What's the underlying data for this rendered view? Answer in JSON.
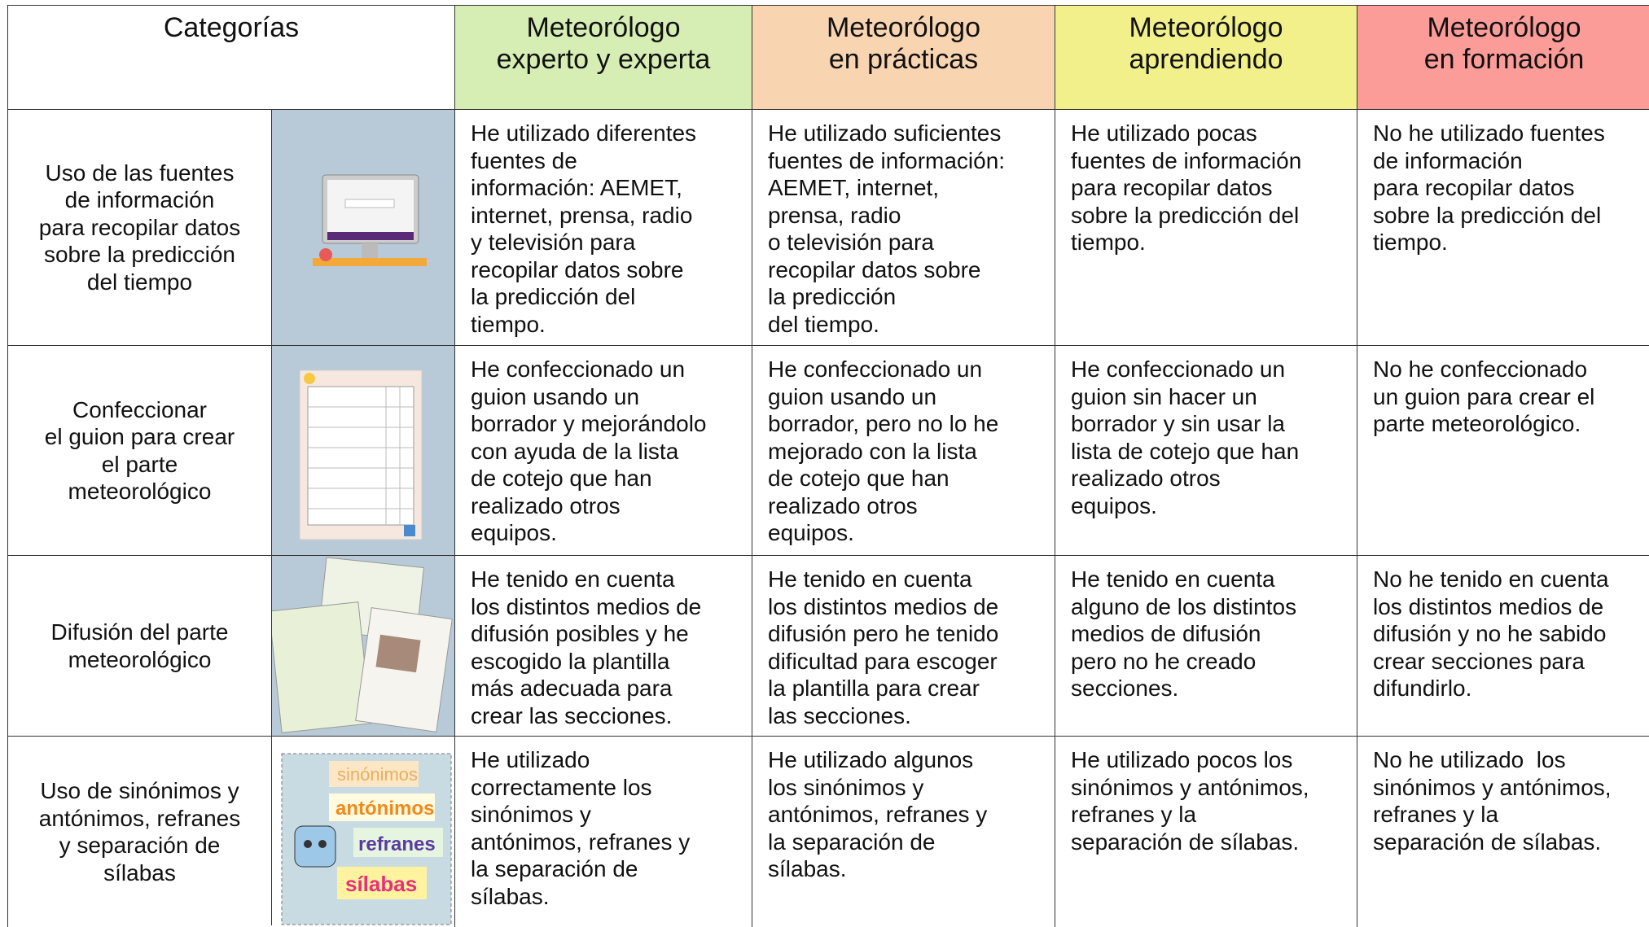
{
  "table": {
    "header": [
      "Categorías",
      "Meteorólogo\nexperto y experta",
      "Meteorólogo\nen prácticas",
      "Meteorólogo\naprendiendo",
      "Meteorólogo\nen formación"
    ],
    "rows": [
      {
        "category": "Uso de las fuentes\nde información\npara recopilar datos\nsobre la predicción\ndel tiempo",
        "cells": [
          "He utilizado diferentes\nfuentes de\ninformación: AEMET,\ninternet, prensa, radio\ny televisión para\nrecopilar datos sobre\nla predicción del\ntiempo.",
          "He utilizado suficientes\nfuentes de información:\nAEMET, internet,\nprensa, radio\no televisión para\nrecopilar datos sobre\nla predicción\ndel tiempo.",
          "He utilizado pocas\nfuentes de información\npara recopilar datos\nsobre la predicción del\ntiempo.",
          "No he utilizado fuentes\nde información\npara recopilar datos\nsobre la predicción del\ntiempo."
        ]
      },
      {
        "category": "Confeccionar\nel guion para crear\nel parte\nmeteorológico",
        "cells": [
          "He confeccionado un\nguion usando un\nborrador y mejorándolo\ncon ayuda de la lista\nde cotejo que han\nrealizado otros\nequipos.",
          "He confeccionado un\nguion usando un\nborrador, pero no lo he\nmejorado con la lista\nde cotejo que han\nrealizado otros\nequipos.",
          "He confeccionado un\nguion sin hacer un\nborrador y sin usar la\nlista de cotejo que han\nrealizado otros\nequipos.",
          "No he confeccionado\nun guion para crear el\nparte meteorológico."
        ]
      },
      {
        "category": "Difusión del parte\nmeteorológico",
        "cells": [
          "He tenido en cuenta\nlos distintos medios de\ndifusión posibles y he\nescogido la plantilla\nmás adecuada para\ncrear las secciones.",
          "He tenido en cuenta\nlos distintos medios de\ndifusión pero he tenido\ndificultad para escoger\nla plantilla para crear\nlas secciones.",
          "He tenido en cuenta\nalguno de los distintos\nmedios de difusión\npero no he creado\nsecciones.",
          "No he tenido en cuenta\nlos distintos medios de\ndifusión y no he sabido\ncrear secciones para\ndifundirlo."
        ]
      },
      {
        "category": "Uso de sinónimos y\nantónimos, refranes\ny separación de\nsílabas",
        "image_labels": [
          "sinónimos",
          "antónimos",
          "refranes",
          "sílabas"
        ],
        "cells": [
          "He utilizado\ncorrectamente los\nsinónimos y\nantónimos, refranes y\nla separación de\nsílabas.",
          "He utilizado algunos\nlos sinónimos y\nantónimos, refranes y\nla separación de\nsílabas.",
          "He utilizado pocos los\nsinónimos y antónimos,\nrefranes y la\nseparación de sílabas.",
          "No he utilizado  los\nsinónimos y antónimos,\nrefranes y la\nseparación de sílabas."
        ]
      }
    ]
  }
}
